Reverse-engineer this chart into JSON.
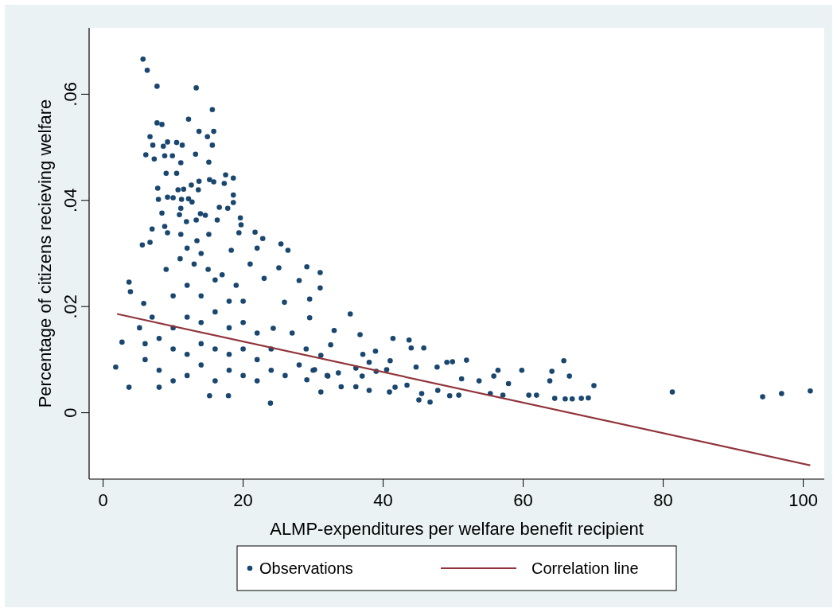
{
  "chart_data": {
    "type": "scatter",
    "xlabel": "ALMP-expenditures per welfare benefit recipient",
    "ylabel": "Percentage of citizens recieving welfare",
    "xlim": [
      -2,
      103
    ],
    "ylim": [
      -0.0125,
      0.0725
    ],
    "xticks": [
      0,
      20,
      40,
      60,
      80,
      100
    ],
    "yticks": [
      0,
      {
        "value": 0.02,
        "label": ".02"
      },
      {
        "value": 0.04,
        "label": ".04"
      },
      {
        "value": 0.06,
        "label": ".06"
      }
    ],
    "legend": "bottom",
    "series": [
      {
        "name": "Observations",
        "marker": "circle",
        "color": "#1a476f",
        "x": [
          5.7,
          6.3,
          7.7,
          13.3,
          15.6,
          12.2,
          7.7,
          8.4,
          13.7,
          15.8,
          14.9,
          6.7,
          7.1,
          9.2,
          10.5,
          11.3,
          15.6,
          8.6,
          6.1,
          7.3,
          8.8,
          9.9,
          13.2,
          11.1,
          15.1,
          9.0,
          10.5,
          17.5,
          18.6,
          15.2,
          15.8,
          13.7,
          12.6,
          7.8,
          10.7,
          11.5,
          13.6,
          17.3,
          18.6,
          18.6,
          9.2,
          7.9,
          10.0,
          11.2,
          12.2,
          12.7,
          16.6,
          17.8,
          11.1,
          8.4,
          10.9,
          13.9,
          14.6,
          16.3,
          19.6,
          19.7,
          7.0,
          8.8,
          11.9,
          13.3,
          5.6,
          6.7,
          9.2,
          11.1,
          13.4,
          15.1,
          18.3,
          19.4,
          22.0,
          25.4,
          25.1,
          23.0,
          3.7,
          3.9,
          5.8,
          5.2,
          2.7,
          1.8,
          3.7,
          8.0,
          15.2,
          23.9,
          17.9,
          25.9,
          24.3,
          21.7,
          22.8,
          8,
          10,
          12,
          14,
          16,
          18,
          20,
          22,
          24,
          26,
          10,
          12,
          14,
          16,
          18,
          20,
          22,
          8,
          10,
          12,
          14,
          16,
          18,
          20,
          10,
          12,
          14,
          16,
          18,
          9,
          11,
          13,
          15,
          17,
          12,
          14,
          6,
          6,
          7,
          28,
          30,
          32,
          29,
          27,
          24,
          22,
          20,
          19,
          21,
          26.4,
          29.1,
          31.0,
          31.0,
          28.0,
          29.5,
          35.3,
          29.5,
          33.0,
          36.7,
          41.4,
          43.7,
          45.8,
          44.0,
          38.9,
          37.1,
          41.0,
          49.1,
          49.9,
          51.9,
          44.7,
          47.7,
          56.4,
          59.8,
          65.8,
          64.1,
          66.6,
          63.8,
          55.8,
          57.9,
          53.7,
          51.2,
          70.1,
          81.3,
          94.2,
          96.9,
          101.0,
          64.5,
          66.0,
          67.0,
          68.3,
          69.3,
          60.8,
          61.9,
          57.1,
          55.3,
          50.8,
          49.5,
          46.7,
          45.1,
          45.5,
          47.8,
          40.9,
          41.7,
          38.0,
          36.1,
          34.0,
          31.1,
          43.4,
          40.5,
          39.0,
          38.0,
          36.1,
          37.0,
          33.6,
          32.1,
          29.1,
          31.1,
          32.5,
          30.2
        ],
        "values": [
          0.0666,
          0.0645,
          0.0615,
          0.0612,
          0.0571,
          0.0553,
          0.0546,
          0.0543,
          0.053,
          0.053,
          0.052,
          0.052,
          0.0504,
          0.051,
          0.0509,
          0.0504,
          0.0504,
          0.0502,
          0.0486,
          0.0478,
          0.0484,
          0.0484,
          0.0487,
          0.0471,
          0.0472,
          0.0451,
          0.0451,
          0.0448,
          0.0442,
          0.0439,
          0.0435,
          0.0436,
          0.0429,
          0.0423,
          0.042,
          0.0421,
          0.042,
          0.0432,
          0.041,
          0.0396,
          0.0406,
          0.0402,
          0.0405,
          0.0402,
          0.0403,
          0.0397,
          0.0387,
          0.0385,
          0.0385,
          0.0376,
          0.0373,
          0.0375,
          0.0372,
          0.0363,
          0.0367,
          0.0354,
          0.0346,
          0.0351,
          0.036,
          0.0363,
          0.0316,
          0.0321,
          0.0339,
          0.0336,
          0.0324,
          0.0336,
          0.0306,
          0.0339,
          0.031,
          0.0318,
          0.0273,
          0.0253,
          0.0246,
          0.0228,
          0.0206,
          0.016,
          0.0133,
          0.0086,
          0.0048,
          0.0048,
          0.0032,
          0.0018,
          0.0032,
          0.0208,
          0.0159,
          0.034,
          0.0328,
          0.008,
          0.006,
          0.007,
          0.009,
          0.006,
          0.008,
          0.007,
          0.006,
          0.008,
          0.007,
          0.012,
          0.011,
          0.013,
          0.012,
          0.011,
          0.012,
          0.01,
          0.014,
          0.016,
          0.018,
          0.017,
          0.019,
          0.016,
          0.017,
          0.022,
          0.024,
          0.022,
          0.025,
          0.021,
          0.027,
          0.029,
          0.028,
          0.027,
          0.026,
          0.031,
          0.03,
          0.01,
          0.013,
          0.018,
          0.009,
          0.008,
          0.007,
          0.012,
          0.015,
          0.012,
          0.015,
          0.021,
          0.024,
          0.028,
          0.0306,
          0.0275,
          0.0264,
          0.0235,
          0.0249,
          0.0214,
          0.0186,
          0.0179,
          0.0155,
          0.0147,
          0.014,
          0.0137,
          0.0122,
          0.0122,
          0.0116,
          0.011,
          0.0098,
          0.0095,
          0.0096,
          0.0099,
          0.0086,
          0.0086,
          0.008,
          0.008,
          0.0098,
          0.0078,
          0.0069,
          0.006,
          0.0069,
          0.0055,
          0.006,
          0.0064,
          0.0051,
          0.0039,
          0.003,
          0.0036,
          0.0041,
          0.0027,
          0.0026,
          0.0026,
          0.0027,
          0.0028,
          0.0033,
          0.0033,
          0.0033,
          0.0036,
          0.0033,
          0.0032,
          0.002,
          0.0024,
          0.0036,
          0.0042,
          0.0039,
          0.0048,
          0.0042,
          0.0049,
          0.0049,
          0.0039,
          0.0052,
          0.0081,
          0.0078,
          0.0095,
          0.0084,
          0.0069,
          0.0075,
          0.0069,
          0.0062,
          0.0108,
          0.0128,
          0.0081
        ]
      },
      {
        "name": "Correlation line",
        "type": "line",
        "color": "#90353b",
        "x": [
          2,
          101
        ],
        "values": [
          0.0186,
          -0.0099
        ]
      }
    ]
  }
}
